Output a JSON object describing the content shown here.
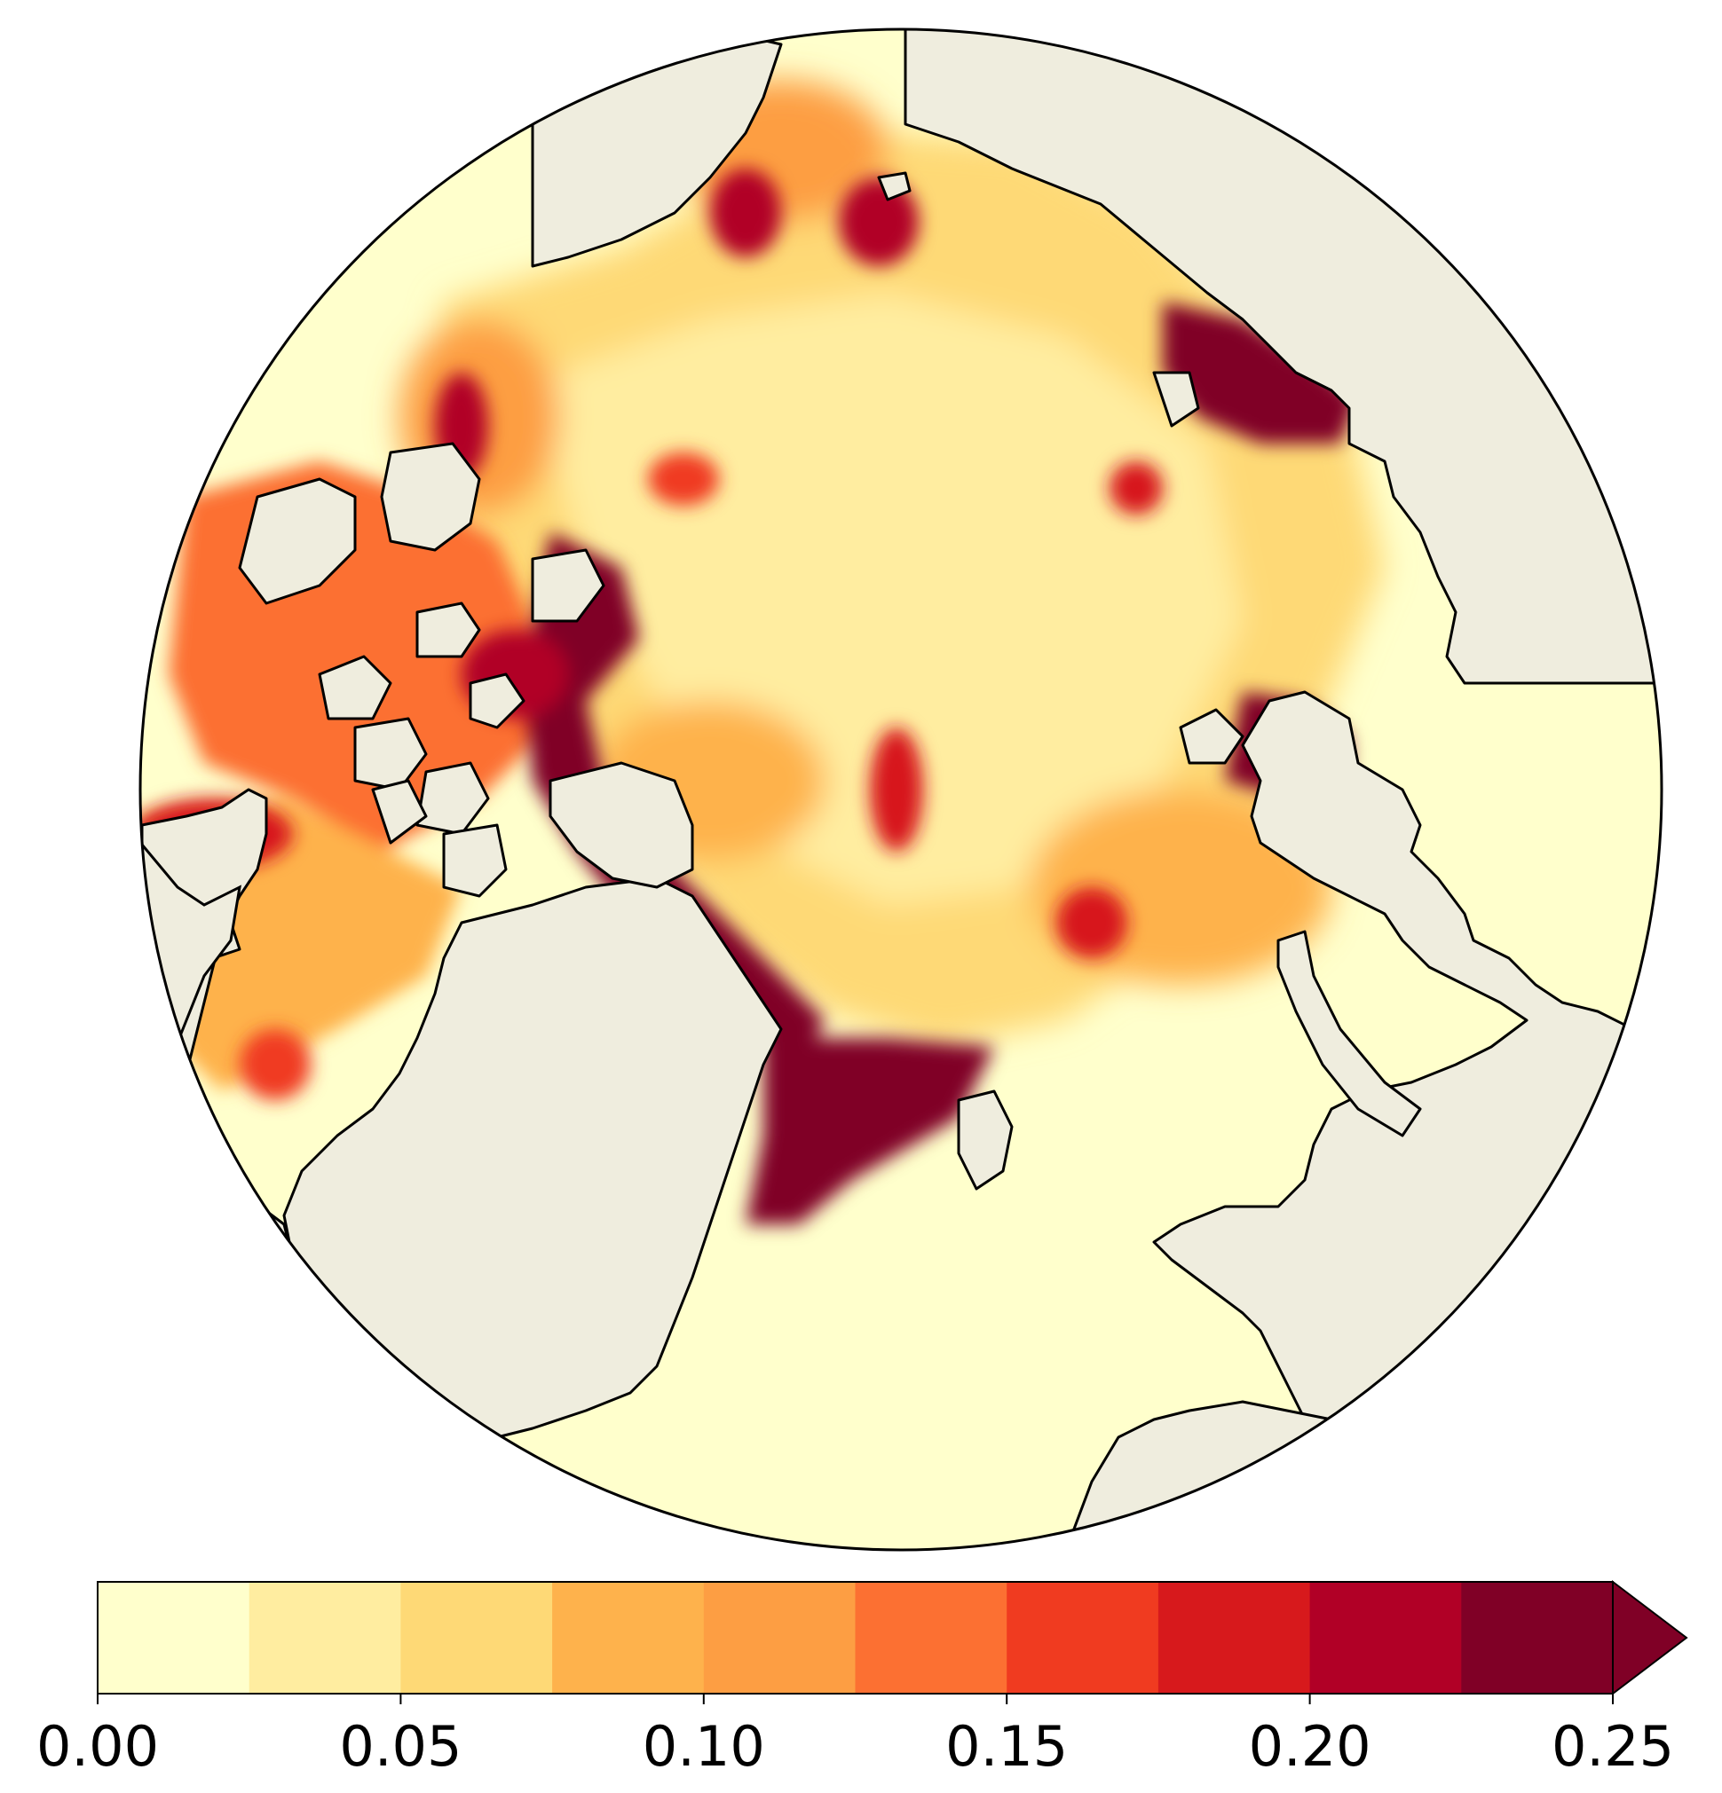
{
  "map": {
    "projection": "north-polar-stereographic",
    "land_color": "#efedde",
    "ocean_low_color": "#ffffcc",
    "coastline_color": "#000000"
  },
  "colorbar": {
    "extend": "max",
    "tick_labels": [
      "0.00",
      "0.05",
      "0.10",
      "0.15",
      "0.20",
      "0.25"
    ],
    "bin_width": 0.025,
    "colors": [
      "#ffffcc",
      "#ffeda0",
      "#fed976",
      "#feb24c",
      "#fd9e43",
      "#fc7032",
      "#f03b20",
      "#d7191c",
      "#b10026",
      "#800026"
    ],
    "extend_color": "#800026"
  }
}
